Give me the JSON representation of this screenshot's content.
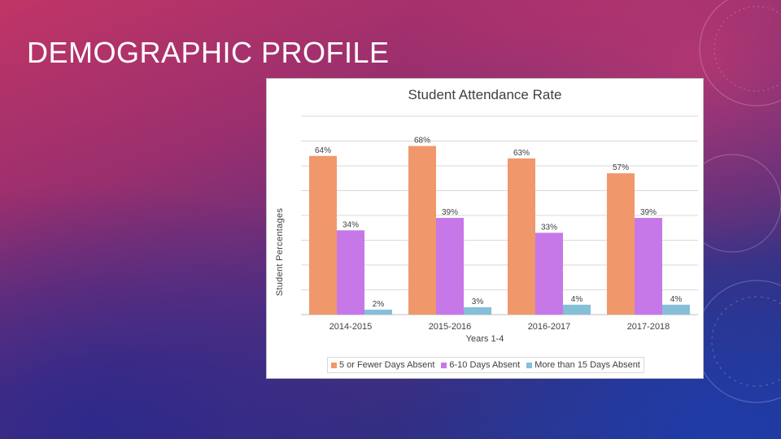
{
  "slide": {
    "title": "DEMOGRAPHIC PROFILE"
  },
  "chart_data": {
    "type": "bar",
    "title": "Student Attendance Rate",
    "xlabel": "Years 1-4",
    "ylabel": "Student Percentages",
    "ylim": [
      0,
      80
    ],
    "grid": true,
    "legend_position": "bottom",
    "categories": [
      "2014-2015",
      "2015-2016",
      "2016-2017",
      "2017-2018"
    ],
    "series": [
      {
        "name": "5 or Fewer Days Absent",
        "color": "#f0986b",
        "values": [
          64,
          68,
          63,
          57
        ],
        "labels": [
          "64%",
          "68%",
          "63%",
          "57%"
        ]
      },
      {
        "name": "6-10 Days Absent",
        "color": "#c678e8",
        "values": [
          34,
          39,
          33,
          39
        ],
        "labels": [
          "34%",
          "39%",
          "33%",
          "39%"
        ]
      },
      {
        "name": "More than 15 Days Absent",
        "color": "#85bfd8",
        "values": [
          2,
          3,
          4,
          4
        ],
        "labels": [
          "2%",
          "3%",
          "4%",
          "4%"
        ]
      }
    ]
  }
}
